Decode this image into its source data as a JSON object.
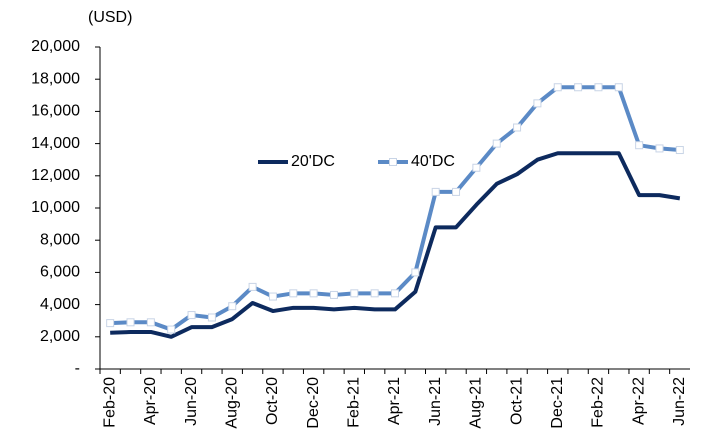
{
  "chart_data": {
    "type": "line",
    "y_label": "(USD)",
    "categories": [
      "Feb-20",
      null,
      "Apr-20",
      null,
      "Jun-20",
      null,
      "Aug-20",
      null,
      "Oct-20",
      null,
      "Dec-20",
      null,
      "Feb-21",
      null,
      "Apr-21",
      null,
      "Jun-21",
      null,
      "Aug-21",
      null,
      "Oct-21",
      null,
      "Dec-21",
      null,
      "Feb-22",
      null,
      "Apr-22",
      null,
      "Jun-22"
    ],
    "series": [
      {
        "name": "20'DC",
        "color": "#0d2a5e",
        "markers": false,
        "values": [
          2250,
          2300,
          2300,
          2000,
          2600,
          2600,
          3100,
          4100,
          3600,
          3800,
          3800,
          3700,
          3800,
          3700,
          3700,
          4800,
          8800,
          8800,
          10200,
          11500,
          12100,
          13000,
          13400,
          13400,
          13400,
          13400,
          10800,
          10800,
          10600
        ]
      },
      {
        "name": "40'DC",
        "color": "#5b8ac6",
        "markers": true,
        "values": [
          2850,
          2900,
          2900,
          2450,
          3350,
          3200,
          3900,
          5100,
          4500,
          4700,
          4700,
          4600,
          4700,
          4700,
          4700,
          6000,
          11000,
          11000,
          12500,
          14000,
          15000,
          16500,
          17500,
          17500,
          17500,
          17500,
          13900,
          13700,
          13600
        ]
      }
    ],
    "ylim": [
      0,
      20000
    ],
    "yticks": [
      {
        "value": 0,
        "label": "-"
      },
      {
        "value": 2000,
        "label": "2,000"
      },
      {
        "value": 4000,
        "label": "4,000"
      },
      {
        "value": 6000,
        "label": "6,000"
      },
      {
        "value": 8000,
        "label": "8,000"
      },
      {
        "value": 10000,
        "label": "10,000"
      },
      {
        "value": 12000,
        "label": "12,000"
      },
      {
        "value": 14000,
        "label": "14,000"
      },
      {
        "value": 16000,
        "label": "16,000"
      },
      {
        "value": 18000,
        "label": "18,000"
      },
      {
        "value": 20000,
        "label": "20,000"
      }
    ],
    "grid": false,
    "legend": "center"
  }
}
